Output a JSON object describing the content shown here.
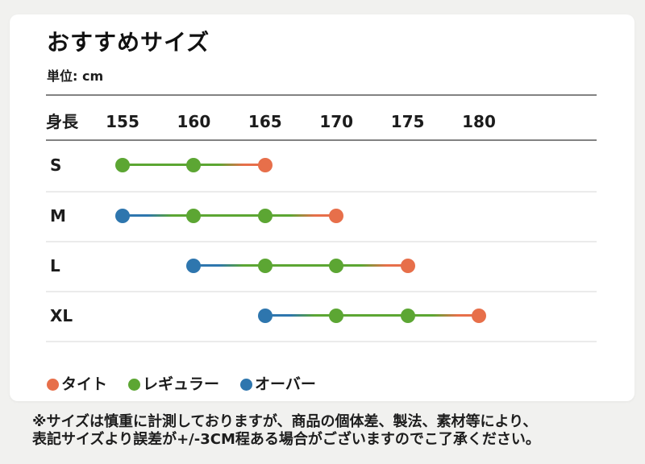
{
  "page": {
    "title": "おすすめサイズ",
    "unit_label": "単位: cm"
  },
  "chart_data": {
    "type": "scatter",
    "subtype": "dot-range-size-chart",
    "x_axis_label": "身長",
    "x_ticks": [
      155,
      160,
      165,
      170,
      175,
      180
    ],
    "fit_colors": {
      "tight": "#E76F4A",
      "regular": "#5CA633",
      "over": "#2E76AE"
    },
    "rows": [
      {
        "label": "S",
        "points": [
          {
            "x": 155,
            "fit": "regular"
          },
          {
            "x": 160,
            "fit": "regular"
          },
          {
            "x": 165,
            "fit": "tight"
          }
        ]
      },
      {
        "label": "M",
        "points": [
          {
            "x": 155,
            "fit": "over"
          },
          {
            "x": 160,
            "fit": "regular"
          },
          {
            "x": 165,
            "fit": "regular"
          },
          {
            "x": 170,
            "fit": "tight"
          }
        ]
      },
      {
        "label": "L",
        "points": [
          {
            "x": 160,
            "fit": "over"
          },
          {
            "x": 165,
            "fit": "regular"
          },
          {
            "x": 170,
            "fit": "regular"
          },
          {
            "x": 175,
            "fit": "tight"
          }
        ]
      },
      {
        "label": "XL",
        "points": [
          {
            "x": 165,
            "fit": "over"
          },
          {
            "x": 170,
            "fit": "regular"
          },
          {
            "x": 175,
            "fit": "regular"
          },
          {
            "x": 180,
            "fit": "tight"
          }
        ]
      }
    ],
    "legend": [
      {
        "label": "タイト",
        "fit": "tight"
      },
      {
        "label": "レギュラー",
        "fit": "regular"
      },
      {
        "label": "オーバー",
        "fit": "over"
      }
    ],
    "legend_position": "bottom-left",
    "grid": "horizontal-separators-only"
  },
  "footnote": {
    "lines": [
      "※サイズは慎重に計測しておりますが、商品の個体差、製法、素材等により、",
      "表記サイズより誤差が+/-3CM程ある場合がございますのでこ了承ください。"
    ]
  }
}
